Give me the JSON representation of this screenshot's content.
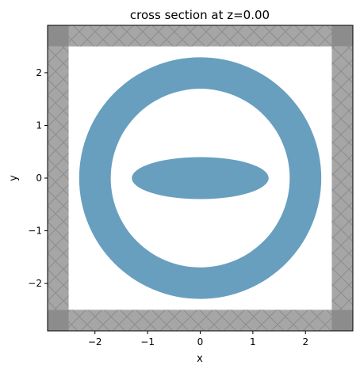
{
  "chart_data": {
    "type": "cross-section",
    "title": "cross section at z=0.00",
    "xlabel": "x",
    "ylabel": "y",
    "xlim": [
      -2.9,
      2.9
    ],
    "ylim": [
      -2.9,
      2.9
    ],
    "xticks": [
      -2,
      -1,
      0,
      1,
      2
    ],
    "xtick_labels": [
      "−2",
      "−1",
      "0",
      "1",
      "2"
    ],
    "yticks": [
      -2,
      -1,
      0,
      1,
      2
    ],
    "ytick_labels": [
      "−2",
      "−1",
      "0",
      "1",
      "2"
    ],
    "grid": false,
    "pml_region": {
      "inner_extent": 2.5,
      "outer_extent": 2.9,
      "color": "#a6a6a6",
      "corner_color": "#8c8c8c",
      "hatch": "cross",
      "hatch_color": "#8c8c8c"
    },
    "structures": [
      {
        "name": "ring",
        "shape": "ring",
        "center": [
          0,
          0
        ],
        "inner_radius": 1.7,
        "outer_radius": 2.3,
        "color": "#689fbf"
      },
      {
        "name": "ellipse",
        "shape": "ellipse",
        "center": [
          0,
          0
        ],
        "radius_x": 1.3,
        "radius_y": 0.4,
        "color": "#689fbf"
      }
    ],
    "background_color": "#ffffff"
  }
}
